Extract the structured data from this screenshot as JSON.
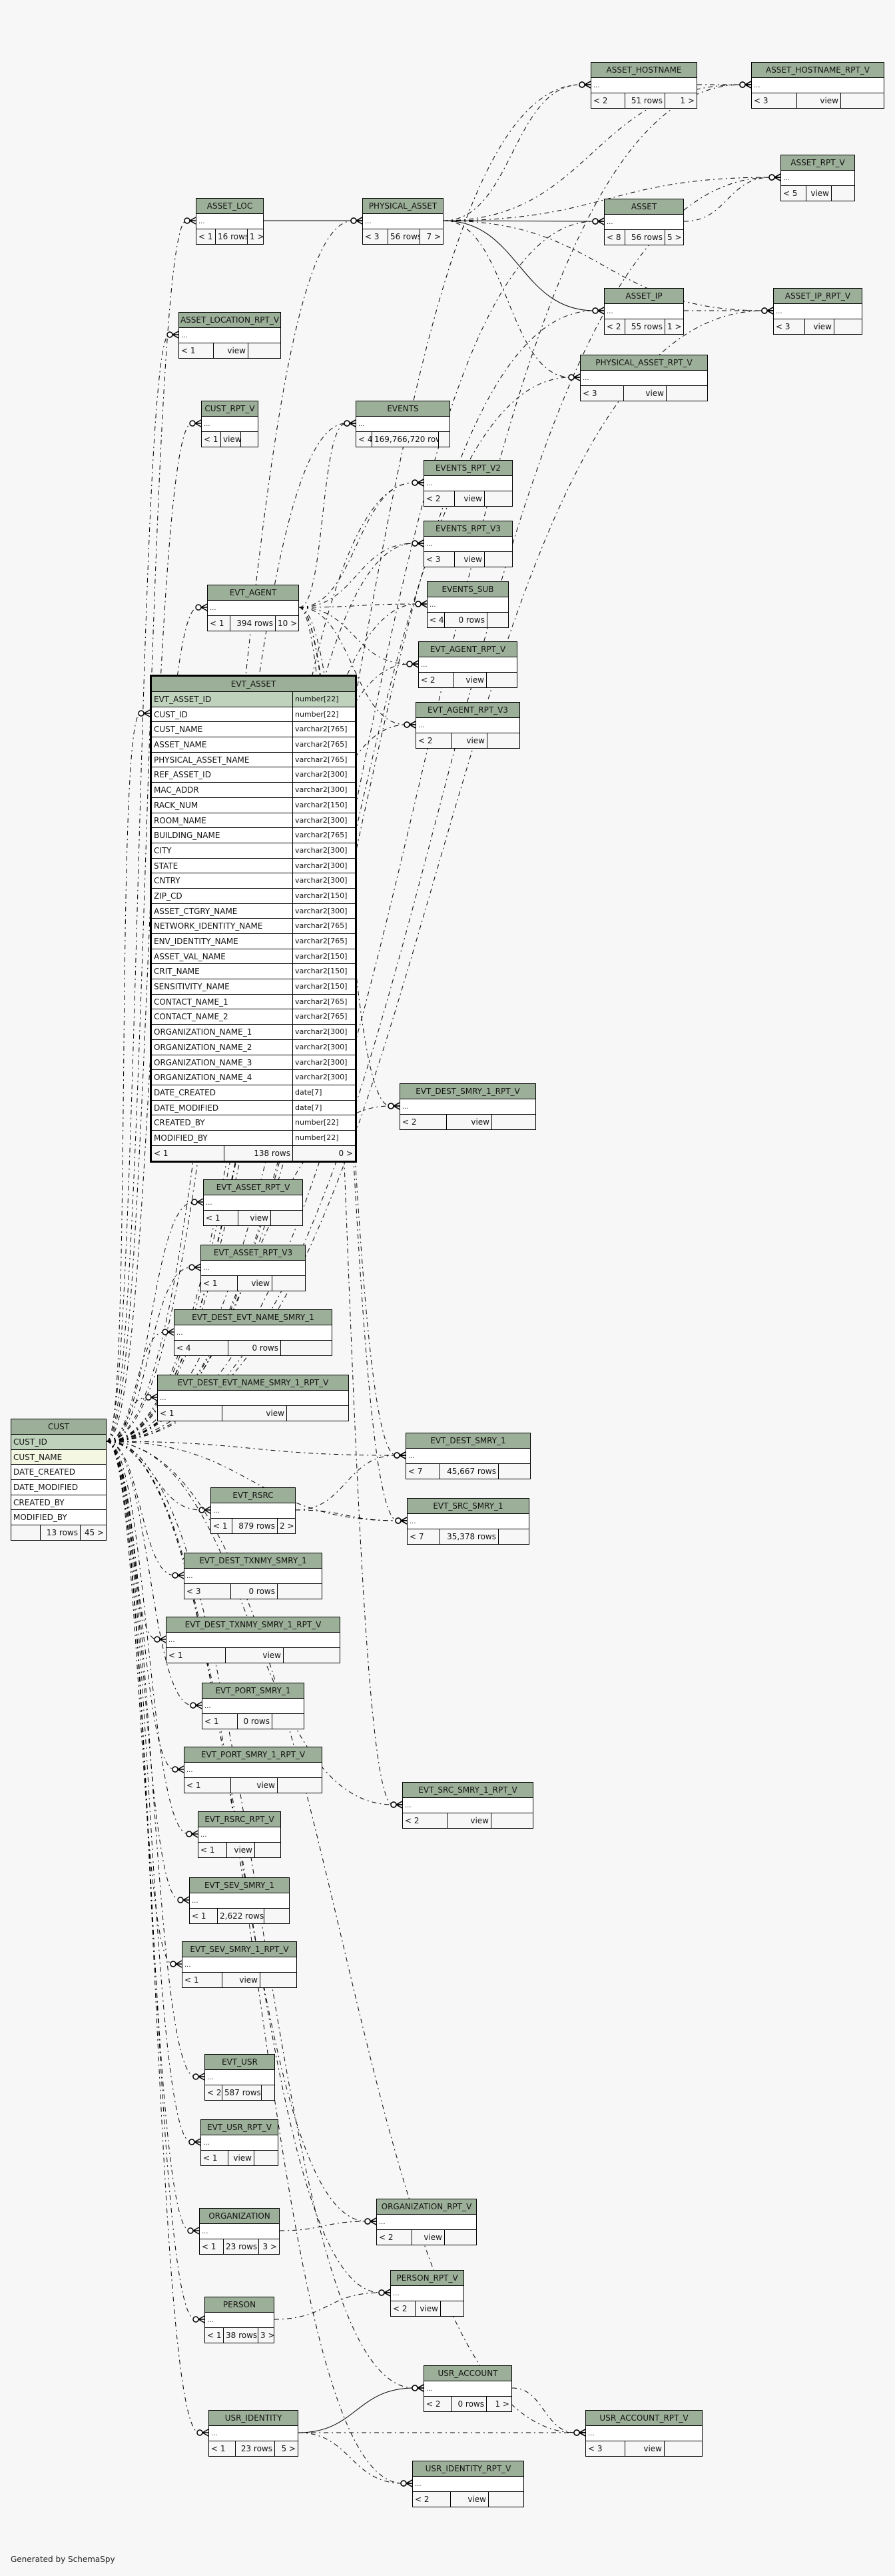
{
  "tables": [
    {
      "name": "ASSET_HOSTNAME",
      "footer": [
        "< 2",
        "51 rows",
        "1 >"
      ]
    },
    {
      "name": "ASSET_HOSTNAME_RPT_V",
      "footer": [
        "< 3",
        "view",
        ""
      ]
    },
    {
      "name": "ASSET_RPT_V",
      "footer": [
        "< 5",
        "view",
        ""
      ]
    },
    {
      "name": "ASSET_LOC",
      "footer": [
        "< 1",
        "16 rows",
        "1 >"
      ]
    },
    {
      "name": "PHYSICAL_ASSET",
      "footer": [
        "< 3",
        "56 rows",
        "7 >"
      ]
    },
    {
      "name": "ASSET",
      "footer": [
        "< 8",
        "56 rows",
        "5 >"
      ]
    },
    {
      "name": "ASSET_IP",
      "footer": [
        "< 2",
        "55 rows",
        "1 >"
      ]
    },
    {
      "name": "ASSET_IP_RPT_V",
      "footer": [
        "< 3",
        "view",
        ""
      ]
    },
    {
      "name": "ASSET_LOCATION_RPT_V",
      "footer": [
        "< 1",
        "view",
        ""
      ]
    },
    {
      "name": "PHYSICAL_ASSET_RPT_V",
      "footer": [
        "< 3",
        "view",
        ""
      ]
    },
    {
      "name": "CUST_RPT_V",
      "footer": [
        "< 1",
        "view",
        ""
      ]
    },
    {
      "name": "EVENTS",
      "footer": [
        "< 4",
        "169,766,720 rows",
        ""
      ]
    },
    {
      "name": "EVENTS_RPT_V2",
      "footer": [
        "< 2",
        "view",
        ""
      ]
    },
    {
      "name": "EVENTS_RPT_V3",
      "footer": [
        "< 3",
        "view",
        ""
      ]
    },
    {
      "name": "EVENTS_SUB",
      "footer": [
        "< 4",
        "0 rows",
        ""
      ]
    },
    {
      "name": "EVT_AGENT",
      "footer": [
        "< 1",
        "394 rows",
        "10 >"
      ]
    },
    {
      "name": "EVT_AGENT_RPT_V",
      "footer": [
        "< 2",
        "view",
        ""
      ]
    },
    {
      "name": "EVT_AGENT_RPT_V3",
      "footer": [
        "< 2",
        "view",
        ""
      ]
    },
    {
      "name": "EVT_ASSET",
      "footer": [
        "< 1",
        "138 rows",
        "0 >"
      ],
      "columns": [
        {
          "name": "EVT_ASSET_ID",
          "type": "number[22]",
          "key": "pk"
        },
        {
          "name": "CUST_ID",
          "type": "number[22]"
        },
        {
          "name": "CUST_NAME",
          "type": "varchar2[765]"
        },
        {
          "name": "ASSET_NAME",
          "type": "varchar2[765]"
        },
        {
          "name": "PHYSICAL_ASSET_NAME",
          "type": "varchar2[765]"
        },
        {
          "name": "REF_ASSET_ID",
          "type": "varchar2[300]"
        },
        {
          "name": "MAC_ADDR",
          "type": "varchar2[300]"
        },
        {
          "name": "RACK_NUM",
          "type": "varchar2[150]"
        },
        {
          "name": "ROOM_NAME",
          "type": "varchar2[300]"
        },
        {
          "name": "BUILDING_NAME",
          "type": "varchar2[765]"
        },
        {
          "name": "CITY",
          "type": "varchar2[300]"
        },
        {
          "name": "STATE",
          "type": "varchar2[300]"
        },
        {
          "name": "CNTRY",
          "type": "varchar2[300]"
        },
        {
          "name": "ZIP_CD",
          "type": "varchar2[150]"
        },
        {
          "name": "ASSET_CTGRY_NAME",
          "type": "varchar2[300]"
        },
        {
          "name": "NETWORK_IDENTITY_NAME",
          "type": "varchar2[765]"
        },
        {
          "name": "ENV_IDENTITY_NAME",
          "type": "varchar2[765]"
        },
        {
          "name": "ASSET_VAL_NAME",
          "type": "varchar2[150]"
        },
        {
          "name": "CRIT_NAME",
          "type": "varchar2[150]"
        },
        {
          "name": "SENSITIVITY_NAME",
          "type": "varchar2[150]"
        },
        {
          "name": "CONTACT_NAME_1",
          "type": "varchar2[765]"
        },
        {
          "name": "CONTACT_NAME_2",
          "type": "varchar2[765]"
        },
        {
          "name": "ORGANIZATION_NAME_1",
          "type": "varchar2[300]"
        },
        {
          "name": "ORGANIZATION_NAME_2",
          "type": "varchar2[300]"
        },
        {
          "name": "ORGANIZATION_NAME_3",
          "type": "varchar2[300]"
        },
        {
          "name": "ORGANIZATION_NAME_4",
          "type": "varchar2[300]"
        },
        {
          "name": "DATE_CREATED",
          "type": "date[7]"
        },
        {
          "name": "DATE_MODIFIED",
          "type": "date[7]"
        },
        {
          "name": "CREATED_BY",
          "type": "number[22]"
        },
        {
          "name": "MODIFIED_BY",
          "type": "number[22]"
        }
      ]
    },
    {
      "name": "EVT_DEST_SMRY_1_RPT_V",
      "footer": [
        "< 2",
        "view",
        ""
      ]
    },
    {
      "name": "EVT_ASSET_RPT_V",
      "footer": [
        "< 1",
        "view",
        ""
      ]
    },
    {
      "name": "EVT_ASSET_RPT_V3",
      "footer": [
        "< 1",
        "view",
        ""
      ]
    },
    {
      "name": "EVT_DEST_EVT_NAME_SMRY_1",
      "footer": [
        "< 4",
        "0 rows",
        ""
      ]
    },
    {
      "name": "EVT_DEST_EVT_NAME_SMRY_1_RPT_V",
      "footer": [
        "< 1",
        "view",
        ""
      ]
    },
    {
      "name": "CUST",
      "footer": [
        "",
        "13 rows",
        "45 >"
      ],
      "columns": [
        {
          "name": "CUST_ID",
          "type": "",
          "key": "pk"
        },
        {
          "name": "CUST_NAME",
          "type": "",
          "key": "idx"
        },
        {
          "name": "DATE_CREATED",
          "type": ""
        },
        {
          "name": "DATE_MODIFIED",
          "type": ""
        },
        {
          "name": "CREATED_BY",
          "type": ""
        },
        {
          "name": "MODIFIED_BY",
          "type": ""
        }
      ]
    },
    {
      "name": "EVT_DEST_SMRY_1",
      "footer": [
        "< 7",
        "45,667 rows",
        ""
      ]
    },
    {
      "name": "EVT_RSRC",
      "footer": [
        "< 1",
        "879 rows",
        "2 >"
      ]
    },
    {
      "name": "EVT_SRC_SMRY_1",
      "footer": [
        "< 7",
        "35,378 rows",
        ""
      ]
    },
    {
      "name": "EVT_DEST_TXNMY_SMRY_1",
      "footer": [
        "< 3",
        "0 rows",
        ""
      ]
    },
    {
      "name": "EVT_DEST_TXNMY_SMRY_1_RPT_V",
      "footer": [
        "< 1",
        "view",
        ""
      ]
    },
    {
      "name": "EVT_PORT_SMRY_1",
      "footer": [
        "< 1",
        "0 rows",
        ""
      ]
    },
    {
      "name": "EVT_PORT_SMRY_1_RPT_V",
      "footer": [
        "< 1",
        "view",
        ""
      ]
    },
    {
      "name": "EVT_SRC_SMRY_1_RPT_V",
      "footer": [
        "< 2",
        "view",
        ""
      ]
    },
    {
      "name": "EVT_RSRC_RPT_V",
      "footer": [
        "< 1",
        "view",
        ""
      ]
    },
    {
      "name": "EVT_SEV_SMRY_1",
      "footer": [
        "< 1",
        "2,622 rows",
        ""
      ]
    },
    {
      "name": "EVT_SEV_SMRY_1_RPT_V",
      "footer": [
        "< 1",
        "view",
        ""
      ]
    },
    {
      "name": "EVT_USR",
      "footer": [
        "< 2",
        "587 rows",
        ""
      ]
    },
    {
      "name": "EVT_USR_RPT_V",
      "footer": [
        "< 1",
        "view",
        ""
      ]
    },
    {
      "name": "ORGANIZATION_RPT_V",
      "footer": [
        "< 2",
        "view",
        ""
      ]
    },
    {
      "name": "ORGANIZATION",
      "footer": [
        "< 1",
        "23 rows",
        "3 >"
      ]
    },
    {
      "name": "PERSON_RPT_V",
      "footer": [
        "< 2",
        "view",
        ""
      ]
    },
    {
      "name": "PERSON",
      "footer": [
        "< 1",
        "38 rows",
        "3 >"
      ]
    },
    {
      "name": "USR_ACCOUNT",
      "footer": [
        "< 2",
        "0 rows",
        "1 >"
      ]
    },
    {
      "name": "USR_IDENTITY",
      "footer": [
        "< 1",
        "23 rows",
        "5 >"
      ]
    },
    {
      "name": "USR_ACCOUNT_RPT_V",
      "footer": [
        "< 3",
        "view",
        ""
      ]
    },
    {
      "name": "USR_IDENTITY_RPT_V",
      "footer": [
        "< 2",
        "view",
        ""
      ]
    }
  ],
  "collapsed_row": "...",
  "colors": {
    "header": "#9caf98",
    "primary_key": "#bfd3bc",
    "indexed": "#f4f7e2",
    "background": "#f7f7f7"
  },
  "credit": "Generated by SchemaSpy"
}
